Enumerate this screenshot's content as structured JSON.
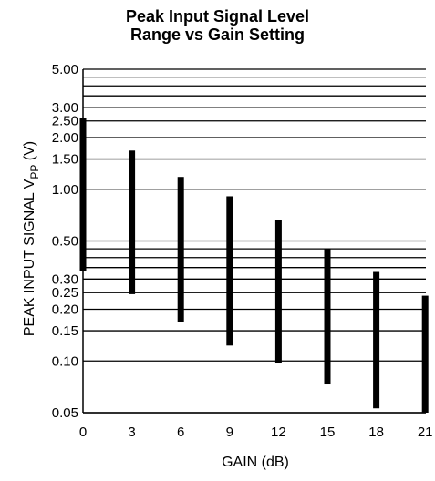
{
  "chart_data": {
    "type": "bar",
    "title_lines": [
      "Peak Input Signal Level",
      "Range vs Gain Setting"
    ],
    "xlabel": "GAIN (dB)",
    "ylabel": {
      "main": "PEAK INPUT SIGNAL V",
      "sub": "PP",
      "unit": " (V)"
    },
    "y_scale": "log",
    "ylim": [
      0.05,
      5.0
    ],
    "y_ticks": [
      {
        "value": 5.0,
        "label": "5.00"
      },
      {
        "value": 4.5,
        "label": ""
      },
      {
        "value": 4.0,
        "label": ""
      },
      {
        "value": 3.5,
        "label": ""
      },
      {
        "value": 3.0,
        "label": "3.00"
      },
      {
        "value": 2.5,
        "label": "2.50"
      },
      {
        "value": 2.0,
        "label": "2.00"
      },
      {
        "value": 1.5,
        "label": "1.50"
      },
      {
        "value": 1.0,
        "label": "1.00"
      },
      {
        "value": 0.5,
        "label": "0.50"
      },
      {
        "value": 0.45,
        "label": ""
      },
      {
        "value": 0.4,
        "label": ""
      },
      {
        "value": 0.35,
        "label": ""
      },
      {
        "value": 0.3,
        "label": "0.30"
      },
      {
        "value": 0.25,
        "label": "0.25"
      },
      {
        "value": 0.2,
        "label": "0.20"
      },
      {
        "value": 0.15,
        "label": "0.15"
      },
      {
        "value": 0.1,
        "label": "0.10"
      },
      {
        "value": 0.05,
        "label": "0.05"
      }
    ],
    "categories": [
      "0",
      "3",
      "6",
      "9",
      "12",
      "15",
      "18",
      "21"
    ],
    "ranges": [
      {
        "gain": "0",
        "low": 0.335,
        "high": 2.6
      },
      {
        "gain": "3",
        "low": 0.245,
        "high": 1.68
      },
      {
        "gain": "6",
        "low": 0.168,
        "high": 1.18
      },
      {
        "gain": "9",
        "low": 0.123,
        "high": 0.91
      },
      {
        "gain": "12",
        "low": 0.097,
        "high": 0.66
      },
      {
        "gain": "15",
        "low": 0.073,
        "high": 0.45
      },
      {
        "gain": "18",
        "low": 0.053,
        "high": 0.33
      },
      {
        "gain": "21",
        "low": 0.05,
        "high": 0.24
      }
    ],
    "grid": "horizontal",
    "colors": {
      "bar": "#000000",
      "grid": "#000000"
    }
  }
}
